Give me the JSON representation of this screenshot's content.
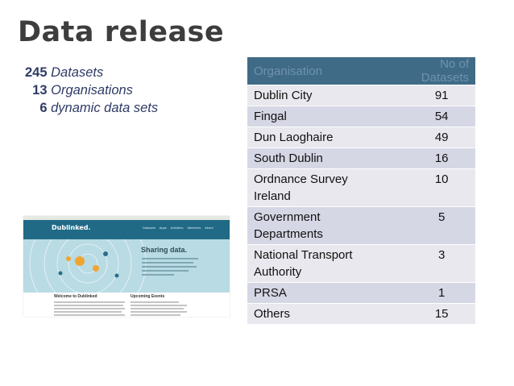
{
  "title": "Data release",
  "stats": [
    {
      "value": "245",
      "label": "Datasets"
    },
    {
      "value": "13",
      "label": "Organisations"
    },
    {
      "value": "6",
      "label": "dynamic data sets"
    }
  ],
  "thumbnail": {
    "logo": "Dublinked.",
    "nav": "Datasets  Apps  Activities  Members  About",
    "hero_heading": "Sharing data.",
    "section_left": "Welcome to Dublinked",
    "section_right": "Upcoming Events"
  },
  "table": {
    "headers": [
      "Organisation",
      "No of Datasets"
    ],
    "rows": [
      {
        "org": "Dublin City",
        "count": "91"
      },
      {
        "org": "Fingal",
        "count": "54"
      },
      {
        "org": "Dun Laoghaire",
        "count": "49"
      },
      {
        "org": "South Dublin",
        "count": "16"
      },
      {
        "org": "Ordnance Survey Ireland",
        "count": "10"
      },
      {
        "org": "Government Departments",
        "count": "5"
      },
      {
        "org": "National Transport Authority",
        "count": "3"
      },
      {
        "org": "PRSA",
        "count": "1"
      },
      {
        "org": "Others",
        "count": "15"
      }
    ]
  },
  "colors": {
    "header_bg": "#3f6b87",
    "row_light": "#e8e8ee",
    "row_dark": "#d6d7e5",
    "stats_text": "#2f3b66"
  }
}
